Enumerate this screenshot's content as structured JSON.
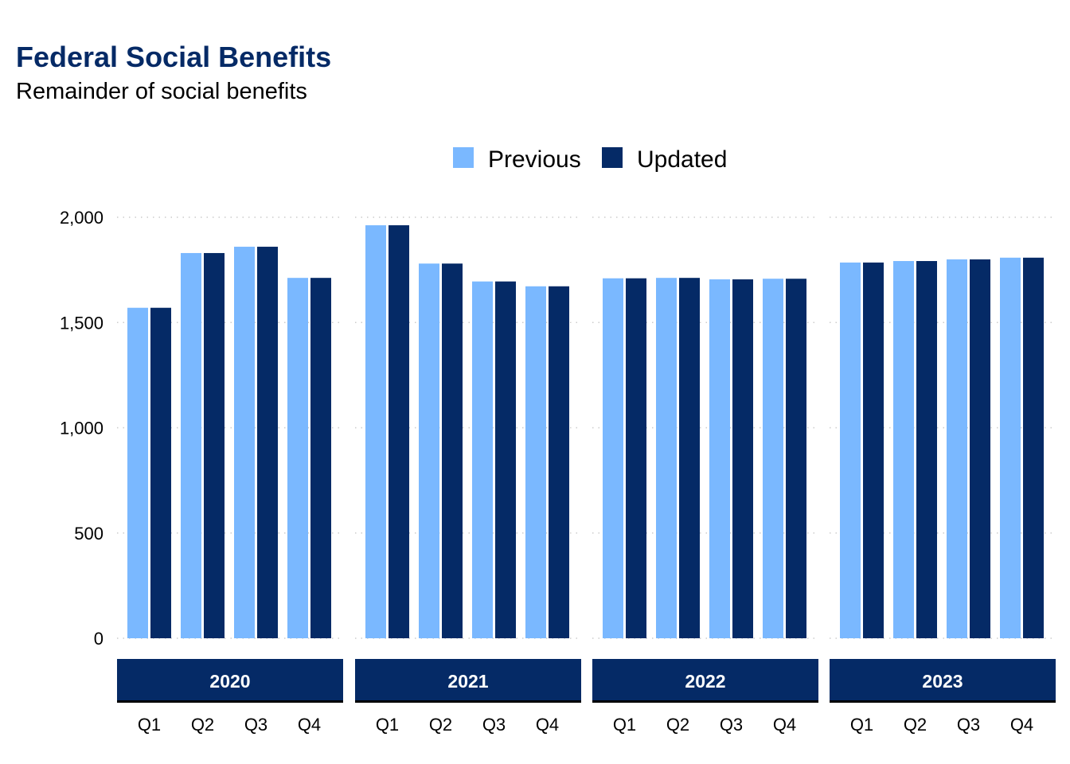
{
  "chart_data": {
    "type": "bar",
    "title": "Federal Social Benefits",
    "subtitle": "Remainder of social benefits",
    "xlabel": "",
    "ylabel": "",
    "ylim": [
      0,
      2000
    ],
    "yticks": [
      0,
      500,
      1000,
      1500,
      2000
    ],
    "ytick_labels": [
      "0",
      "500",
      "1,000",
      "1,500",
      "2,000"
    ],
    "grid": "horizontal dotted",
    "legend_position": "top",
    "colors": {
      "Previous": "#7ab8ff",
      "Updated": "#052a66",
      "title": "#052a66",
      "strip": "#052a66",
      "grid": "#cccccc"
    },
    "categories": [
      "Q1",
      "Q2",
      "Q3",
      "Q4"
    ],
    "panels": [
      {
        "year": "2020",
        "series": [
          {
            "name": "Previous",
            "values": [
              1570,
              1830,
              1860,
              1712
            ]
          },
          {
            "name": "Updated",
            "values": [
              1570,
              1830,
              1860,
              1712
            ]
          }
        ]
      },
      {
        "year": "2021",
        "series": [
          {
            "name": "Previous",
            "values": [
              1962,
              1780,
              1695,
              1672
            ]
          },
          {
            "name": "Updated",
            "values": [
              1962,
              1780,
              1695,
              1672
            ]
          }
        ]
      },
      {
        "year": "2022",
        "series": [
          {
            "name": "Previous",
            "values": [
              1710,
              1712,
              1705,
              1708
            ]
          },
          {
            "name": "Updated",
            "values": [
              1710,
              1712,
              1705,
              1708
            ]
          }
        ]
      },
      {
        "year": "2023",
        "series": [
          {
            "name": "Previous",
            "values": [
              1785,
              1792,
              1800,
              1808
            ]
          },
          {
            "name": "Updated",
            "values": [
              1785,
              1792,
              1800,
              1808
            ]
          }
        ]
      }
    ]
  }
}
